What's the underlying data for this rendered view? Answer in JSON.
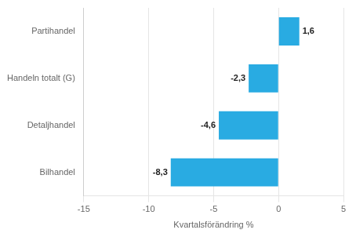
{
  "chart_data": {
    "type": "bar",
    "orientation": "horizontal",
    "categories": [
      "Bilhandel",
      "Detaljhandel",
      "Handeln totalt (G)",
      "Partihandel"
    ],
    "values": [
      -8.3,
      -4.6,
      -2.3,
      1.6
    ],
    "value_labels": [
      "-8,3",
      "-4,6",
      "-2,3",
      "1,6"
    ],
    "data_labels": true,
    "color": "#29abe2",
    "xlabel": "Kvartalsförändring %",
    "xlim": [
      -15,
      5
    ],
    "xticks": [
      -15,
      -10,
      -5,
      0,
      5
    ],
    "grid": true
  }
}
